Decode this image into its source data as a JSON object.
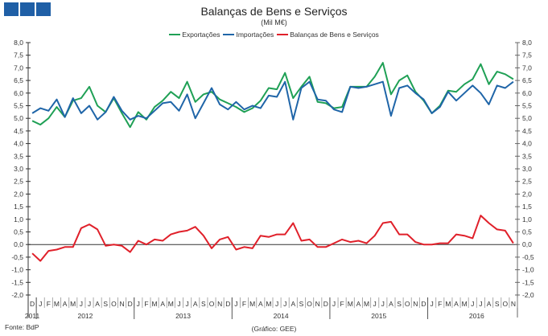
{
  "chart_data": {
    "type": "line",
    "title": "Balanças de Bens e Serviços",
    "subtitle": "(Mil M€)",
    "legend_position": "top",
    "grid": false,
    "ylim": [
      -2.0,
      8.0
    ],
    "yticks": [
      "8,0",
      "7,5",
      "7,0",
      "6,5",
      "6,0",
      "5,5",
      "5,0",
      "4,5",
      "4,0",
      "3,5",
      "3,0",
      "2,5",
      "2,0",
      "1,5",
      "1,0",
      "0,5",
      "0,0",
      "-0,5",
      "-1,0",
      "-1,5",
      "-2,0"
    ],
    "month_labels": [
      "D",
      "J",
      "F",
      "M",
      "A",
      "M",
      "J",
      "J",
      "A",
      "S",
      "O",
      "N",
      "D",
      "J",
      "F",
      "M",
      "A",
      "M",
      "J",
      "J",
      "A",
      "S",
      "O",
      "N",
      "D",
      "J",
      "F",
      "M",
      "A",
      "M",
      "J",
      "J",
      "A",
      "S",
      "O",
      "N",
      "D",
      "J",
      "F",
      "M",
      "A",
      "M",
      "J",
      "J",
      "A",
      "S",
      "O",
      "N",
      "D",
      "J",
      "F",
      "M",
      "A",
      "M",
      "J",
      "J",
      "A",
      "S",
      "O",
      "N"
    ],
    "year_labels": [
      "2011",
      "2012",
      "2013",
      "2014",
      "2015",
      "2016"
    ],
    "series": [
      {
        "name": "Exportações",
        "color": "#1fa055",
        "values": [
          4.9,
          4.75,
          5.0,
          5.45,
          5.05,
          5.7,
          5.8,
          6.25,
          5.5,
          5.25,
          5.8,
          5.2,
          4.65,
          5.25,
          4.95,
          5.45,
          5.7,
          6.05,
          5.8,
          6.45,
          5.65,
          5.95,
          6.05,
          5.75,
          5.6,
          5.45,
          5.25,
          5.4,
          5.7,
          6.2,
          6.15,
          6.8,
          5.8,
          6.25,
          6.65,
          5.65,
          5.6,
          5.4,
          5.45,
          6.25,
          6.25,
          6.25,
          6.65,
          7.2,
          5.95,
          6.5,
          6.7,
          6.05,
          5.7,
          5.2,
          5.5,
          6.1,
          6.05,
          6.35,
          6.55,
          7.15,
          6.35,
          6.85,
          6.75,
          6.55
        ]
      },
      {
        "name": "Importações",
        "color": "#1f65a8",
        "values": [
          5.2,
          5.4,
          5.3,
          5.75,
          5.05,
          5.8,
          5.2,
          5.5,
          4.95,
          5.25,
          5.85,
          5.3,
          4.95,
          5.1,
          5.0,
          5.3,
          5.6,
          5.65,
          5.3,
          5.95,
          5.0,
          5.6,
          6.2,
          5.55,
          5.35,
          5.65,
          5.35,
          5.5,
          5.4,
          5.9,
          5.85,
          6.45,
          4.95,
          6.2,
          6.45,
          5.75,
          5.7,
          5.35,
          5.25,
          6.25,
          6.2,
          6.25,
          6.35,
          6.45,
          5.1,
          6.2,
          6.3,
          6.0,
          5.75,
          5.2,
          5.45,
          6.05,
          5.7,
          6.0,
          6.3,
          6.0,
          5.55,
          6.3,
          6.2,
          6.45
        ]
      },
      {
        "name": "Balanças de Bens e Serviços",
        "color": "#e0202a",
        "values": [
          -0.35,
          -0.65,
          -0.25,
          -0.2,
          -0.1,
          -0.1,
          0.65,
          0.8,
          0.6,
          -0.05,
          0.0,
          -0.05,
          -0.3,
          0.15,
          0.0,
          0.2,
          0.15,
          0.4,
          0.5,
          0.55,
          0.7,
          0.35,
          -0.15,
          0.2,
          0.3,
          -0.2,
          -0.1,
          -0.15,
          0.35,
          0.3,
          0.4,
          0.4,
          0.85,
          0.15,
          0.2,
          -0.1,
          -0.1,
          0.05,
          0.2,
          0.1,
          0.15,
          0.05,
          0.35,
          0.85,
          0.9,
          0.4,
          0.4,
          0.1,
          0.0,
          0.0,
          0.05,
          0.05,
          0.4,
          0.35,
          0.25,
          1.15,
          0.85,
          0.6,
          0.55,
          0.05
        ]
      }
    ]
  },
  "footer": {
    "source": "Fonte: BdP",
    "credit": "(Gráfico: GEE)"
  }
}
